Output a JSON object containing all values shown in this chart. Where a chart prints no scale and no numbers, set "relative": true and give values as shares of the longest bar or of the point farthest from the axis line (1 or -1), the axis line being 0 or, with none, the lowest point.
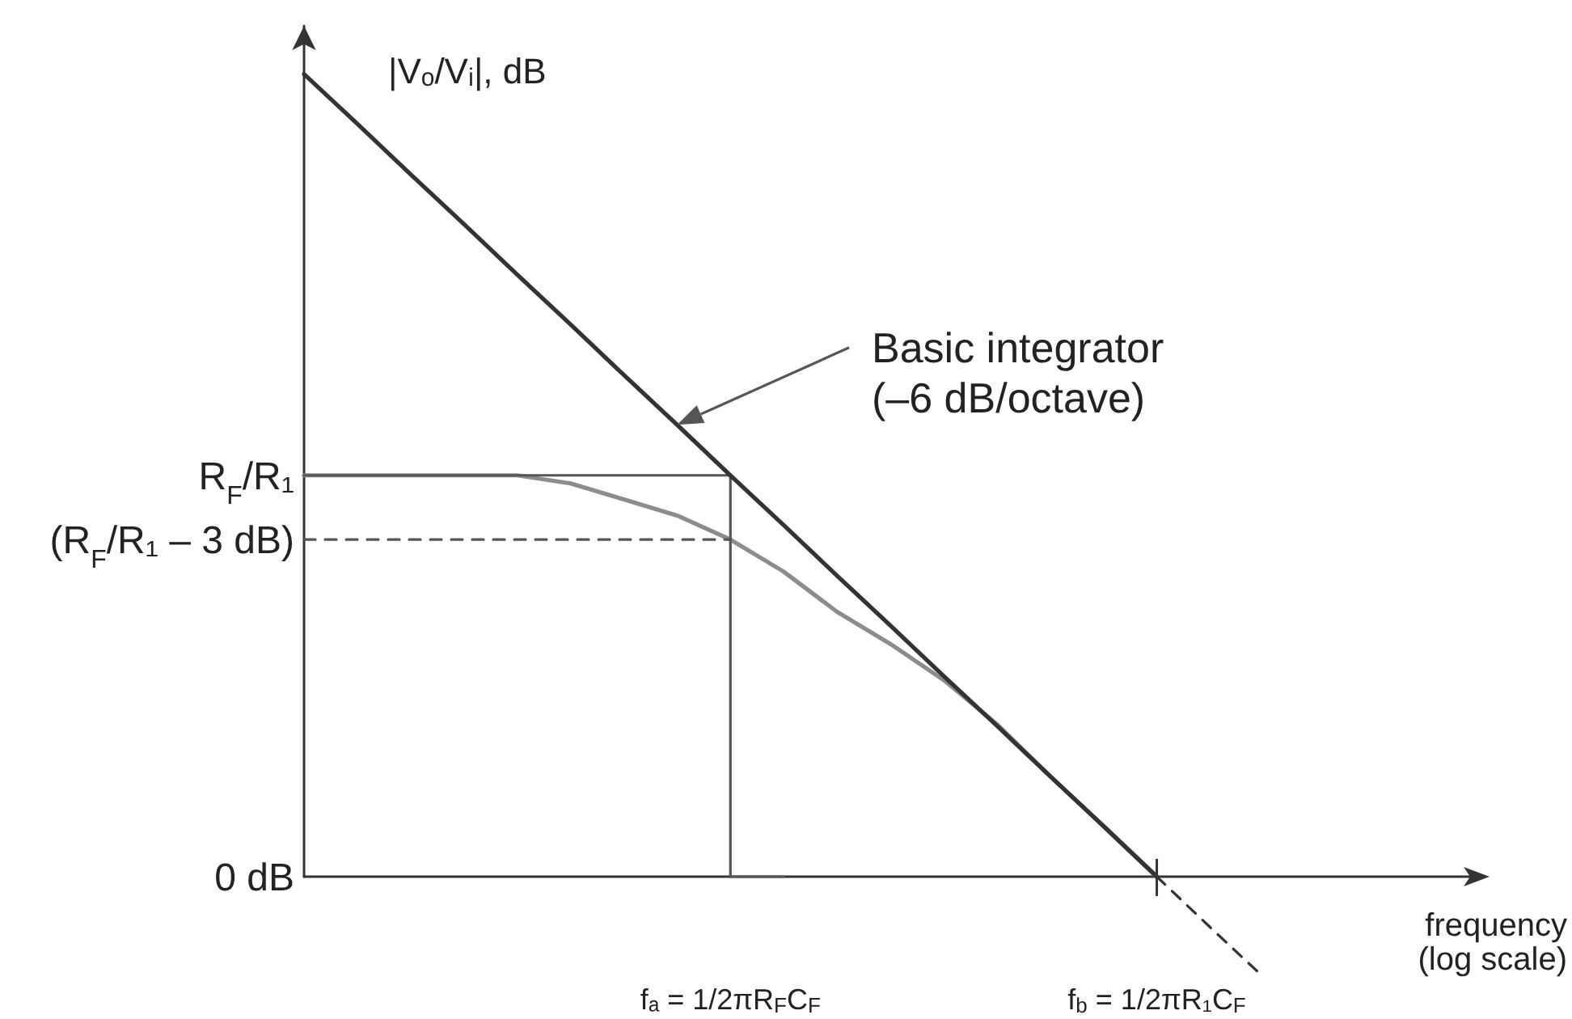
{
  "chart_data": {
    "type": "line",
    "relative": true,
    "marker": "none",
    "categories": [
      null,
      null,
      null,
      null,
      null,
      null,
      null,
      null,
      "fₐ = 1/2πR$_{F}$C$_{F}$",
      null,
      null,
      null,
      null,
      null,
      null,
      null,
      "f$_{b}$ = 1/2πR₁C$_{F}$",
      null,
      null,
      null,
      null,
      null,
      null
    ],
    "xlabel": "frequency\n(log scale)",
    "ylabel": "|Vₒ/Vᵢ|, dB",
    "series": [
      {
        "color": "#333333",
        "values": [
          1,
          0.938,
          0.875,
          0.813,
          0.75,
          0.688,
          0.625,
          0.563,
          0.5,
          0.438,
          0.375,
          0.313,
          0.25,
          0.188,
          0.125,
          0.063,
          0,
          null,
          null,
          null,
          null,
          null,
          null
        ]
      },
      {
        "color": "#333333",
        "line_style": "dashed",
        "values": [
          null,
          null,
          null,
          null,
          null,
          null,
          null,
          null,
          null,
          null,
          null,
          null,
          null,
          null,
          null,
          null,
          0,
          -0.063,
          -0.125,
          null,
          null,
          null,
          null
        ]
      },
      {
        "type": "step",
        "color": "#555555",
        "values": [
          0.5,
          0.5,
          0.5,
          0.5,
          0.5,
          0.5,
          0.5,
          0.5,
          0.5,
          0,
          null,
          null,
          null,
          null,
          null,
          null,
          null,
          null,
          null,
          null,
          null,
          null,
          null
        ]
      },
      {
        "color": "#555555",
        "line_style": "dashed",
        "values": [
          0.42,
          0.42,
          0.42,
          0.42,
          0.42,
          0.42,
          0.42,
          0.42,
          0.42,
          null,
          null,
          null,
          null,
          null,
          null,
          null,
          null,
          null,
          null,
          null,
          null,
          null,
          null
        ]
      },
      {
        "color": "#8c8c8c",
        "values": [
          0.5,
          0.5,
          0.5,
          0.5,
          0.5,
          0.49,
          0.47,
          0.45,
          0.42,
          0.38,
          0.33,
          0.29,
          0.245,
          0.19,
          0.125,
          0.063,
          0,
          null,
          null,
          null,
          null,
          null,
          null
        ]
      }
    ],
    "annotations": [
      "Basic integrator\n(–6 dB/octave)",
      "R$_{F}$/R₁",
      "(R$_{F}$/R₁ – 3 dB)",
      "0 dB"
    ]
  }
}
